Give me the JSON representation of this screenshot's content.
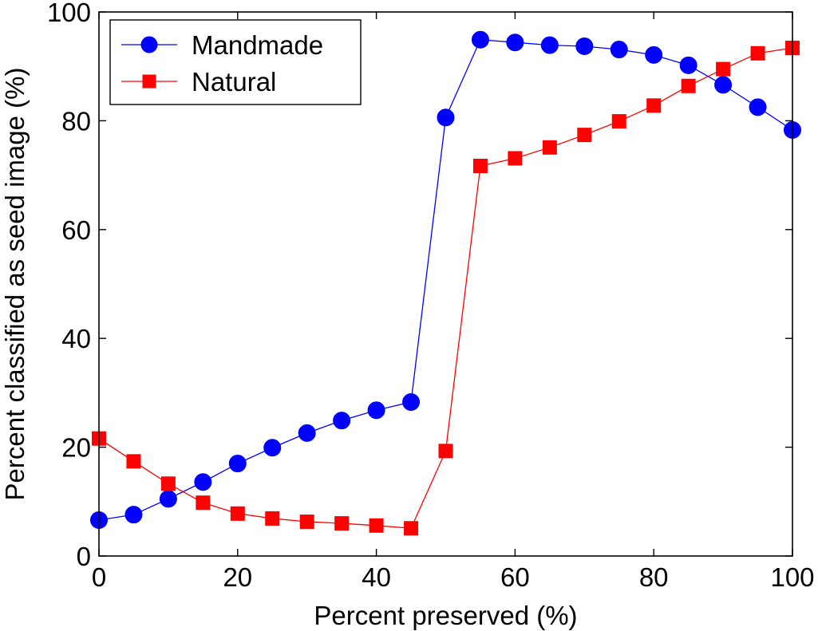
{
  "chart_data": {
    "type": "line",
    "title": "",
    "xlabel": "Percent preserved (%)",
    "ylabel": "Percent classified as seed image (%)",
    "xlim": [
      0,
      100
    ],
    "ylim": [
      0,
      100
    ],
    "xticks": [
      0,
      20,
      40,
      60,
      80,
      100
    ],
    "yticks": [
      0,
      20,
      40,
      60,
      80,
      100
    ],
    "grid": false,
    "legend_position": "top-left",
    "x": [
      0,
      5,
      10,
      15,
      20,
      25,
      30,
      35,
      40,
      45,
      50,
      55,
      60,
      65,
      70,
      75,
      80,
      85,
      90,
      95,
      100
    ],
    "series": [
      {
        "name": "Mandmade",
        "color": "#0000ff",
        "marker": "circle",
        "values": [
          6.6,
          7.6,
          10.5,
          13.6,
          17.0,
          19.9,
          22.6,
          24.9,
          26.8,
          28.3,
          80.6,
          94.9,
          94.4,
          93.9,
          93.7,
          93.1,
          92.1,
          90.2,
          86.6,
          82.5,
          78.3
        ]
      },
      {
        "name": "Natural",
        "color": "#ff0000",
        "marker": "square",
        "values": [
          21.6,
          17.4,
          13.3,
          9.8,
          7.8,
          6.9,
          6.3,
          6.0,
          5.6,
          5.1,
          19.3,
          71.7,
          73.1,
          75.1,
          77.4,
          79.9,
          82.8,
          86.4,
          89.5,
          92.4,
          93.4
        ]
      }
    ]
  }
}
